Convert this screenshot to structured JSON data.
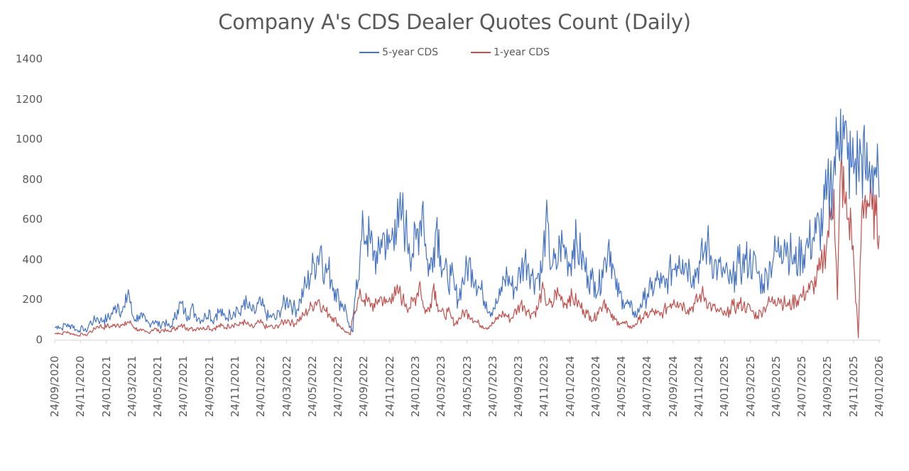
{
  "chart": {
    "title": "Company A's CDS Dealer Quotes Count (Daily)",
    "legend": [
      {
        "label": "5-year CDS",
        "color": "#4472C4"
      },
      {
        "label": "1-year CDS",
        "color": "#C0504D"
      }
    ]
  },
  "chart_data": {
    "type": "line",
    "title": "Company A's CDS Dealer Quotes Count (Daily)",
    "xlabel": "",
    "ylabel": "",
    "ylim": [
      0,
      1400
    ],
    "yticks": [
      0,
      200,
      400,
      600,
      800,
      1000,
      1200,
      1400
    ],
    "grid": false,
    "legend_position": "top",
    "x_tick_labels": [
      "24/09/2020",
      "24/11/2020",
      "24/01/2021",
      "24/03/2021",
      "24/05/2021",
      "24/07/2021",
      "24/09/2021",
      "24/11/2021",
      "24/01/2022",
      "24/03/2022",
      "24/05/2022",
      "24/07/2022",
      "24/09/2022",
      "24/11/2022",
      "24/01/2023",
      "24/03/2023",
      "24/05/2023",
      "24/07/2023",
      "24/09/2023",
      "24/11/2023",
      "24/01/2024",
      "24/03/2024",
      "24/05/2024",
      "24/07/2024",
      "24/09/2024",
      "24/11/2024",
      "24/01/2025",
      "24/03/2025",
      "24/05/2025",
      "24/07/2025",
      "24/09/2025",
      "24/11/2025",
      "24/01/2026"
    ],
    "series": [
      {
        "name": "5-year CDS",
        "color": "#4472C4",
        "approx_bimonthly_low": [
          40,
          35,
          60,
          70,
          50,
          50,
          60,
          60,
          70,
          80,
          70,
          100,
          130,
          60,
          200,
          220,
          230,
          200,
          130,
          120,
          180,
          200,
          160,
          150,
          120,
          150,
          200,
          220,
          220,
          200,
          380,
          550,
          700
        ],
        "approx_bimonthly_high": [
          100,
          80,
          130,
          250,
          140,
          120,
          180,
          170,
          160,
          200,
          190,
          230,
          490,
          470,
          600,
          560,
          660,
          700,
          620,
          470,
          500,
          610,
          500,
          510,
          510,
          360,
          480,
          480,
          480,
          410,
          560,
          1150,
          880
        ],
        "values": [
          60,
          70,
          55,
          80,
          65,
          75,
          50,
          45,
          60,
          40,
          85,
          90,
          110,
          95,
          100,
          105,
          120,
          150,
          180,
          140,
          160,
          250,
          130,
          100,
          120,
          110,
          90,
          80,
          95,
          85,
          70,
          90,
          75,
          60,
          100,
          150,
          180,
          140,
          120,
          160,
          130,
          110,
          100,
          120,
          150,
          90,
          130,
          140,
          120,
          110,
          130,
          140,
          160,
          120,
          200,
          160,
          150,
          130,
          180,
          170,
          140,
          110,
          120,
          100,
          140,
          170,
          190,
          200,
          160,
          150,
          200,
          250,
          280,
          330,
          380,
          420,
          470,
          330,
          350,
          300,
          250,
          200,
          180,
          150,
          60,
          40,
          300,
          400,
          550,
          520,
          480,
          440,
          380,
          500,
          520,
          450,
          500,
          600,
          560,
          630,
          550,
          480,
          430,
          500,
          580,
          690,
          400,
          350,
          460,
          610,
          420,
          350,
          300,
          320,
          250,
          200,
          280,
          320,
          380,
          350,
          300,
          260,
          230,
          190,
          140,
          160,
          180,
          220,
          300,
          320,
          280,
          250,
          300,
          350,
          400,
          380,
          320,
          300,
          330,
          350,
          600,
          420,
          380,
          350,
          480,
          460,
          420,
          380,
          500,
          450,
          420,
          370,
          320,
          300,
          290,
          250,
          350,
          400,
          500,
          380,
          250,
          230,
          200,
          180,
          160,
          140,
          120,
          180,
          200,
          230,
          250,
          270,
          300,
          280,
          260,
          320,
          350,
          380,
          420,
          400,
          380,
          360,
          320,
          350,
          380,
          430,
          480,
          420,
          380,
          350,
          340,
          330,
          300,
          280,
          340,
          380,
          360,
          400,
          390,
          380,
          350,
          300,
          280,
          330,
          380,
          420,
          440,
          470,
          500,
          450,
          420,
          380,
          400,
          430,
          460,
          480,
          500,
          530,
          560,
          600,
          700,
          760,
          850,
          950,
          1150,
          1000,
          900,
          860,
          870,
          880,
          920,
          850,
          820,
          870,
          860,
          710
        ]
      },
      {
        "name": "1-year CDS",
        "color": "#C0504D",
        "approx_bimonthly_low": [
          10,
          10,
          40,
          50,
          20,
          20,
          30,
          30,
          40,
          50,
          30,
          50,
          70,
          30,
          120,
          120,
          100,
          80,
          50,
          20,
          60,
          80,
          80,
          60,
          50,
          50,
          0,
          80,
          80,
          70,
          180,
          10,
          520
        ],
        "approx_bimonthly_high": [
          40,
          40,
          80,
          100,
          80,
          70,
          70,
          70,
          90,
          90,
          100,
          130,
          210,
          200,
          250,
          240,
          260,
          300,
          280,
          160,
          230,
          270,
          260,
          280,
          170,
          180,
          260,
          260,
          250,
          230,
          290,
          900,
          730
        ],
        "values": [
          30,
          35,
          28,
          40,
          35,
          30,
          25,
          20,
          30,
          20,
          40,
          45,
          65,
          70,
          60,
          70,
          65,
          70,
          80,
          75,
          70,
          90,
          80,
          60,
          50,
          45,
          40,
          35,
          50,
          55,
          40,
          50,
          45,
          40,
          55,
          60,
          65,
          70,
          60,
          55,
          50,
          60,
          60,
          55,
          70,
          50,
          60,
          65,
          70,
          60,
          70,
          75,
          80,
          70,
          90,
          80,
          70,
          60,
          80,
          85,
          75,
          60,
          70,
          55,
          70,
          80,
          90,
          100,
          85,
          80,
          100,
          110,
          130,
          150,
          170,
          190,
          200,
          160,
          140,
          130,
          110,
          90,
          70,
          50,
          35,
          25,
          150,
          180,
          220,
          200,
          190,
          180,
          160,
          200,
          210,
          180,
          190,
          230,
          220,
          240,
          200,
          180,
          160,
          190,
          220,
          290,
          160,
          140,
          180,
          280,
          180,
          140,
          120,
          140,
          110,
          80,
          100,
          120,
          140,
          130,
          110,
          90,
          80,
          70,
          60,
          70,
          80,
          100,
          120,
          130,
          120,
          100,
          130,
          150,
          180,
          170,
          140,
          130,
          140,
          160,
          250,
          200,
          180,
          160,
          240,
          220,
          200,
          180,
          220,
          200,
          190,
          170,
          150,
          130,
          120,
          100,
          140,
          160,
          200,
          160,
          110,
          100,
          90,
          80,
          80,
          70,
          60,
          80,
          100,
          110,
          120,
          130,
          140,
          130,
          120,
          140,
          160,
          180,
          200,
          190,
          180,
          170,
          150,
          160,
          180,
          200,
          230,
          210,
          180,
          160,
          150,
          140,
          130,
          120,
          150,
          170,
          160,
          180,
          170,
          160,
          150,
          130,
          120,
          140,
          160,
          180,
          190,
          200,
          210,
          190,
          180,
          170,
          180,
          200,
          210,
          220,
          240,
          250,
          270,
          300,
          350,
          400,
          500,
          600,
          750,
          200,
          880,
          700,
          600,
          560,
          300,
          10,
          640,
          720,
          680,
          650,
          620,
          520
        ]
      }
    ]
  }
}
